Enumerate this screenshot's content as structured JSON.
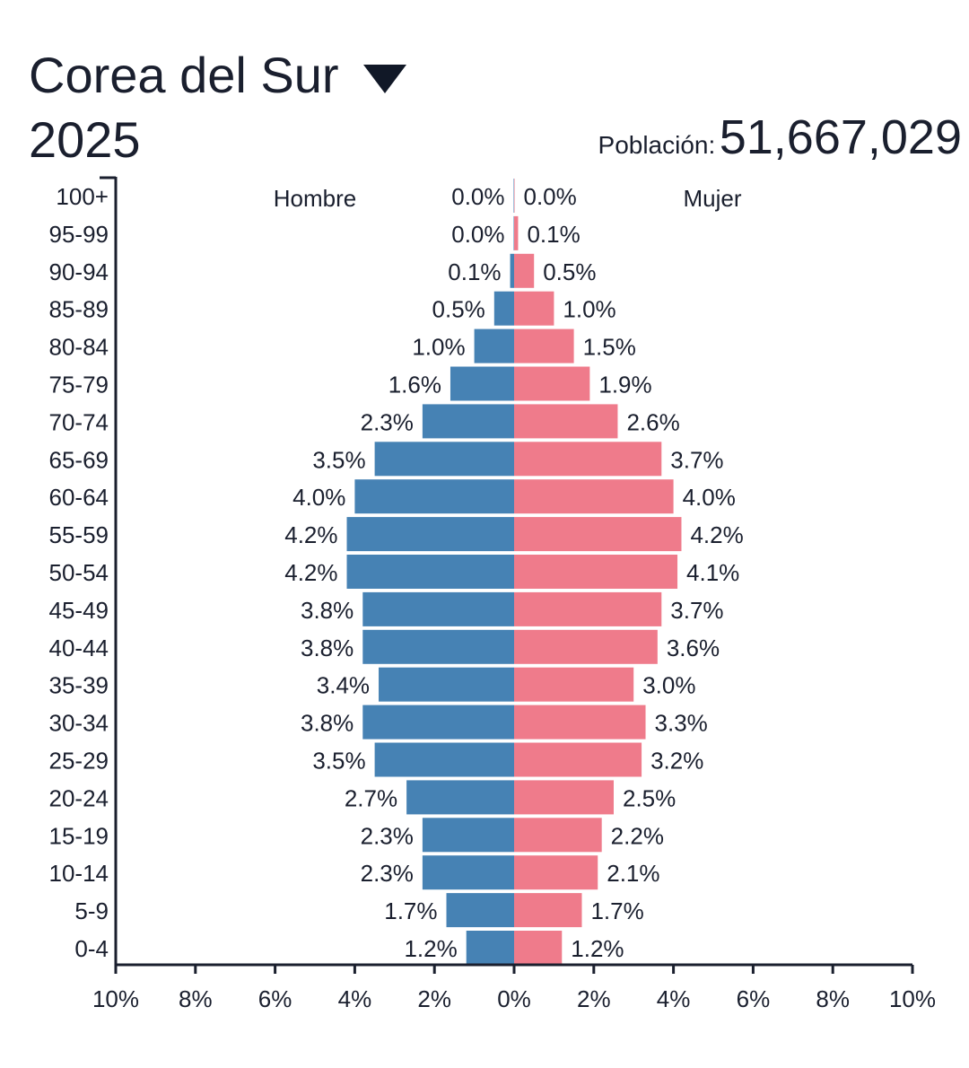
{
  "header": {
    "country": "Corea del Sur",
    "year": "2025",
    "population_label": "Población:",
    "population_value": "51,667,029"
  },
  "colors": {
    "male": "#4682b4",
    "female": "#ef7b8b",
    "axis": "#1a1f2e"
  },
  "chart_data": {
    "type": "bar",
    "orientation": "horizontal-pyramid",
    "categories": [
      "100+",
      "95-99",
      "90-94",
      "85-89",
      "80-84",
      "75-79",
      "70-74",
      "65-69",
      "60-64",
      "55-59",
      "50-54",
      "45-49",
      "40-44",
      "35-39",
      "30-34",
      "25-29",
      "20-24",
      "15-19",
      "10-14",
      "5-9",
      "0-4"
    ],
    "series": [
      {
        "name": "Hombre",
        "values": [
          0.0,
          0.0,
          0.1,
          0.5,
          1.0,
          1.6,
          2.3,
          3.5,
          4.0,
          4.2,
          4.2,
          3.8,
          3.8,
          3.4,
          3.8,
          3.5,
          2.7,
          2.3,
          2.3,
          1.7,
          1.2
        ],
        "labels": [
          "0.0%",
          "0.0%",
          "0.1%",
          "0.5%",
          "1.0%",
          "1.6%",
          "2.3%",
          "3.5%",
          "4.0%",
          "4.2%",
          "4.2%",
          "3.8%",
          "3.8%",
          "3.4%",
          "3.8%",
          "3.5%",
          "2.7%",
          "2.3%",
          "2.3%",
          "1.7%",
          "1.2%"
        ]
      },
      {
        "name": "Mujer",
        "values": [
          0.0,
          0.1,
          0.5,
          1.0,
          1.5,
          1.9,
          2.6,
          3.7,
          4.0,
          4.2,
          4.1,
          3.7,
          3.6,
          3.0,
          3.3,
          3.2,
          2.5,
          2.2,
          2.1,
          1.7,
          1.2
        ],
        "labels": [
          "0.0%",
          "0.1%",
          "0.5%",
          "1.0%",
          "1.5%",
          "1.9%",
          "2.6%",
          "3.7%",
          "4.0%",
          "4.2%",
          "4.1%",
          "3.7%",
          "3.6%",
          "3.0%",
          "3.3%",
          "3.2%",
          "2.5%",
          "2.2%",
          "2.1%",
          "1.7%",
          "1.2%"
        ]
      }
    ],
    "xlim": [
      -10,
      10
    ],
    "x_ticks": [
      -10,
      -8,
      -6,
      -4,
      -2,
      0,
      2,
      4,
      6,
      8,
      10
    ],
    "x_tick_labels": [
      "10%",
      "8%",
      "6%",
      "4%",
      "2%",
      "0%",
      "2%",
      "4%",
      "6%",
      "8%",
      "10%"
    ],
    "grid": false
  }
}
